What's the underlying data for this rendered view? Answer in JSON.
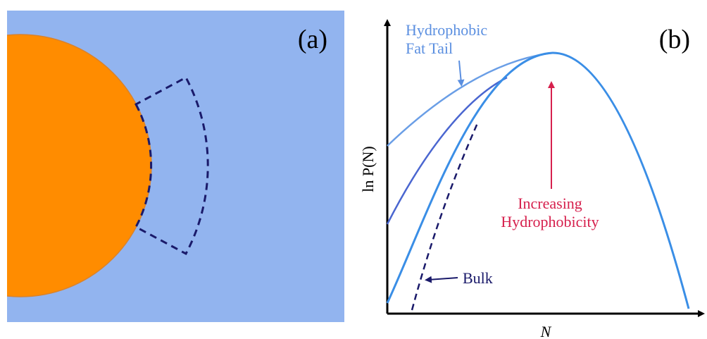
{
  "panel_a": {
    "label": "(a)"
  },
  "panel_b": {
    "label": "(b)",
    "y_axis_label": "ln P(N)",
    "x_axis_label": "N",
    "annotations": {
      "fat_tail": [
        "Hydrophobic",
        "Fat Tail"
      ],
      "increasing": [
        "Increasing",
        "Hydrophobicity"
      ],
      "bulk": "Bulk"
    }
  }
}
